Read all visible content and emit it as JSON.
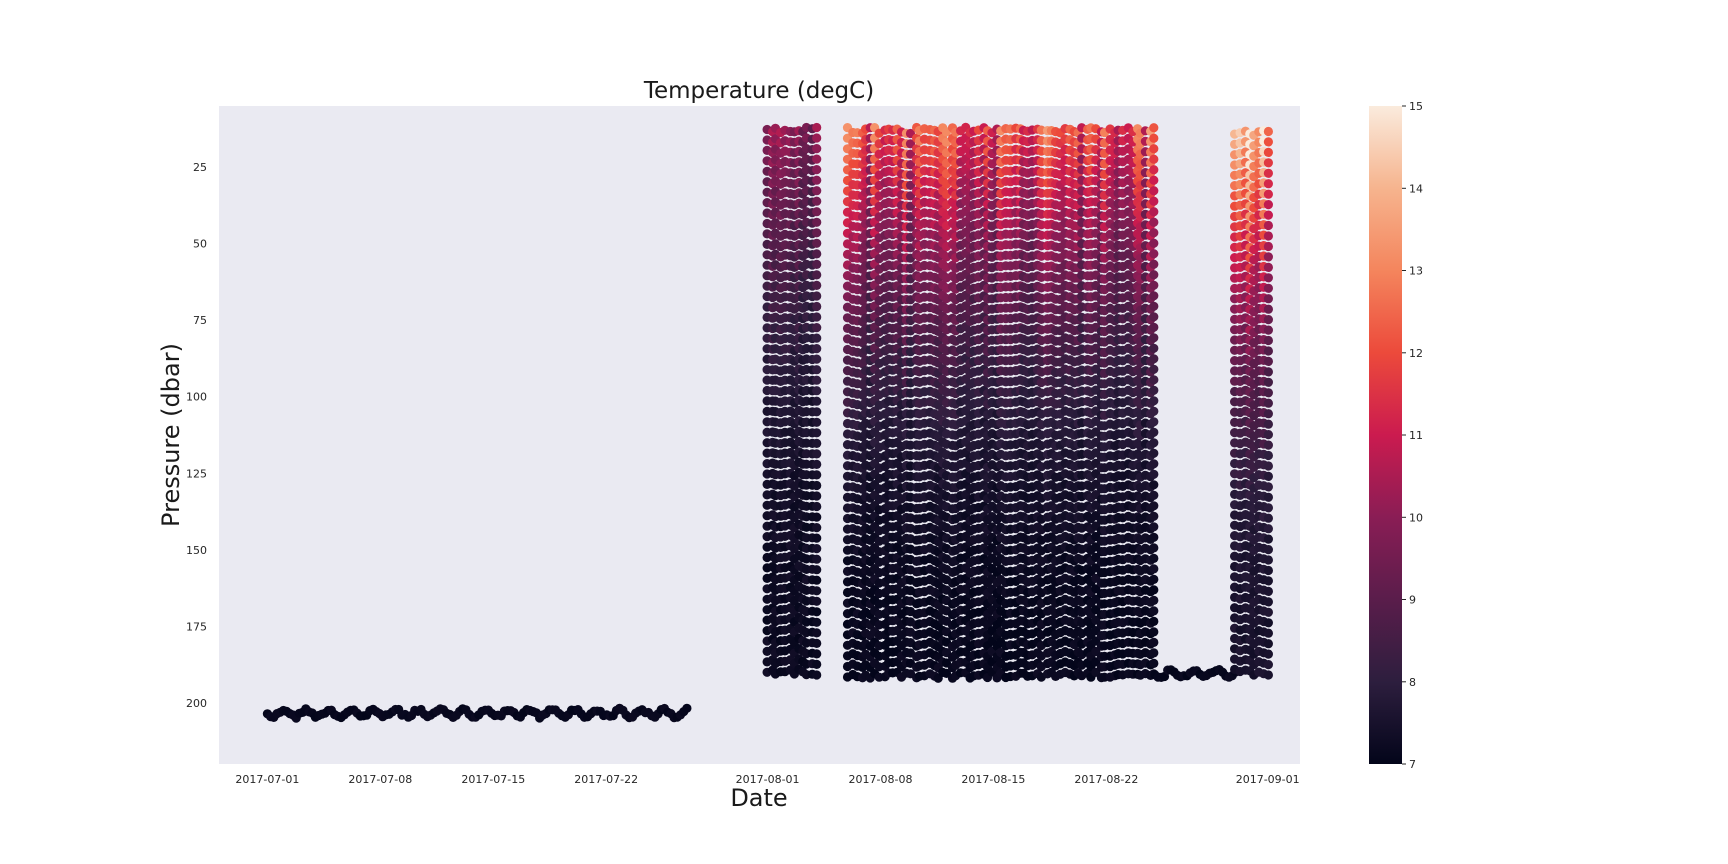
{
  "chart_data": {
    "type": "scatter",
    "title": "Temperature (degC)",
    "xlabel": "Date",
    "ylabel": "Pressure (dbar)",
    "x_axis_type": "date",
    "xlim": [
      "2017-06-28",
      "2017-09-03"
    ],
    "ylim": [
      220,
      5
    ],
    "y_inverted": true,
    "grid": false,
    "background": "#eaeaf2",
    "x_ticks": [
      "2017-07-01",
      "2017-07-08",
      "2017-07-15",
      "2017-07-22",
      "2017-08-01",
      "2017-08-08",
      "2017-08-15",
      "2017-08-22",
      "2017-09-01"
    ],
    "y_ticks": [
      25,
      50,
      75,
      100,
      125,
      150,
      175,
      200
    ],
    "colorbar": {
      "colormap": "rocket",
      "range": [
        7,
        15
      ],
      "ticks": [
        7,
        8,
        9,
        10,
        11,
        12,
        13,
        14,
        15
      ],
      "colors": [
        "#03051a",
        "#2d1e3e",
        "#5a1d4b",
        "#8a1d55",
        "#cb1b4f",
        "#ec4a3b",
        "#f4855d",
        "#f6b48e",
        "#faebdd"
      ]
    },
    "segments": [
      {
        "name": "",
        "start": "2017-07-01",
        "end": "2017-07-27",
        "kind": "near-bottom",
        "p_min": 202,
        "p_max": 206,
        "temp_bottom": 7.0,
        "temp_top": 7.0
      },
      {
        "name": "",
        "start": "2017-08-01",
        "end": "2017-08-04",
        "kind": "profiles",
        "p_min": 12,
        "p_max": 191,
        "temp_bottom": 7.2,
        "temp_top": 9.8
      },
      {
        "name": "",
        "start": "2017-08-06",
        "end": "2017-08-25",
        "kind": "profiles",
        "p_min": 12,
        "p_max": 192,
        "temp_bottom": 7.1,
        "temp_top": 12.0
      },
      {
        "name": "",
        "start": "2017-08-25",
        "end": "2017-08-30",
        "kind": "near-bottom",
        "p_min": 189,
        "p_max": 193,
        "temp_bottom": 7.0,
        "temp_top": 7.0
      },
      {
        "name": "",
        "start": "2017-08-30",
        "end": "2017-09-01",
        "kind": "profiles",
        "p_min": 13,
        "p_max": 191,
        "temp_bottom": 7.5,
        "temp_top": 14.5
      }
    ]
  }
}
